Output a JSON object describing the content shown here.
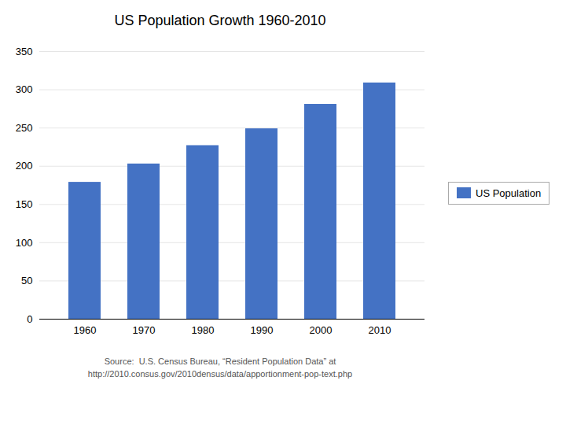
{
  "chart_data": {
    "type": "bar",
    "title": "US Population Growth 1960-2010",
    "categories": [
      "1960",
      "1970",
      "1980",
      "1990",
      "2000",
      "2010"
    ],
    "series": [
      {
        "name": "US Population",
        "color": "#4472C4",
        "values": [
          179,
          203,
          227,
          249,
          281,
          309
        ]
      }
    ],
    "ylim": [
      0,
      350
    ],
    "yticks": [
      0,
      50,
      100,
      150,
      200,
      250,
      300,
      350
    ],
    "grid": true,
    "legend": "right",
    "annotations": [
      "Source:  U.S. Census Bureau, “Resident Population Data” at",
      "http://2010.consus.gov/2010densus/data/apportionment-pop-text.php"
    ]
  }
}
